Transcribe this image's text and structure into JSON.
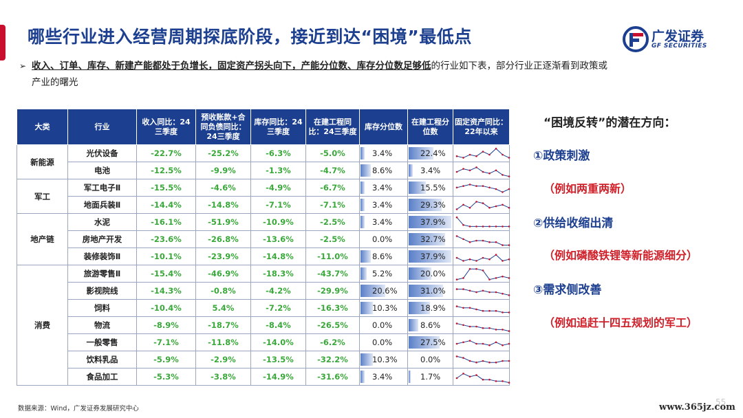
{
  "title": "哪些行业进入经营周期探底阶段，接近到达“困境”最低点",
  "logo": {
    "cn": "广发证券",
    "en": "GF SECURITIES"
  },
  "subtitle": {
    "bullet": "➢",
    "bold": "收入、订单、库存、新建产能都处于负增长，固定资产拐头向下，产能分位数、库存分位数足够低",
    "normal": "的行业如下表，部分行业正逐渐看到政策或",
    "line2": "产业的曙光"
  },
  "table": {
    "headers": [
      "大类",
      "行业",
      "收入同比：24三季度",
      "预收账款+合同负债同比：24三季度",
      "库存同比：24三季度",
      "在建工程同比：24三季度",
      "库存分位数",
      "在建工程分位数",
      "固定资产同比：22年以来"
    ],
    "groups": [
      {
        "name": "新能源",
        "rows": [
          {
            "industry": "光伏设备",
            "rev": "-22.7%",
            "adv": "-25.2%",
            "inv": "-6.3%",
            "cip": "-5.0%",
            "invp": "3.4%",
            "invp_v": 3.4,
            "cipp": "22.4%",
            "cipp_v": 22.4,
            "spark": [
              6,
              7,
              5,
              6,
              3,
              5,
              1,
              5,
              7
            ]
          },
          {
            "industry": "电池",
            "rev": "-12.5%",
            "adv": "-9.9%",
            "inv": "-1.3%",
            "cip": "-4.7%",
            "invp": "8.6%",
            "invp_v": 8.6,
            "cipp": "3.4%",
            "cipp_v": 3.4,
            "spark": [
              5,
              3,
              4,
              2,
              5,
              6,
              4,
              7,
              8
            ]
          }
        ]
      },
      {
        "name": "军工",
        "rows": [
          {
            "industry": "军工电子Ⅱ",
            "rev": "-15.5%",
            "adv": "-4.6%",
            "inv": "-4.9%",
            "cip": "-6.7%",
            "invp": "3.4%",
            "invp_v": 3.4,
            "cipp": "15.5%",
            "cipp_v": 15.5,
            "spark": [
              4,
              3,
              2,
              3,
              3,
              4,
              5,
              7,
              5
            ]
          },
          {
            "industry": "地面兵装Ⅱ",
            "rev": "-14.4%",
            "adv": "-14.8%",
            "inv": "-7.1%",
            "cip": "-7.1%",
            "invp": "3.4%",
            "invp_v": 3.4,
            "cipp": "29.3%",
            "cipp_v": 29.3,
            "spark": [
              7,
              4,
              6,
              2,
              3,
              6,
              5,
              4,
              6
            ]
          }
        ]
      },
      {
        "name": "地产链",
        "rows": [
          {
            "industry": "水泥",
            "rev": "-16.1%",
            "adv": "-51.9%",
            "inv": "-10.9%",
            "cip": "-2.5%",
            "invp": "3.4%",
            "invp_v": 3.4,
            "cipp": "37.9%",
            "cipp_v": 37.9,
            "spark": [
              1,
              6,
              7,
              7,
              7,
              7,
              7,
              7,
              7
            ]
          },
          {
            "industry": "房地产开发",
            "rev": "-23.6%",
            "adv": "-26.8%",
            "inv": "-13.6%",
            "cip": "-2.5%",
            "invp": "0.0%",
            "invp_v": 0,
            "cipp": "32.7%",
            "cipp_v": 32.7,
            "spark": [
              2,
              4,
              6,
              5,
              5,
              6,
              6,
              8,
              8
            ]
          },
          {
            "industry": "装修装饰Ⅱ",
            "rev": "-10.1%",
            "adv": "-23.9%",
            "inv": "-14.8%",
            "cip": "-11.0%",
            "invp": "8.6%",
            "invp_v": 8.6,
            "cipp": "37.9%",
            "cipp_v": 37.9,
            "spark": [
              5,
              7,
              6,
              7,
              5,
              6,
              3,
              7,
              6
            ]
          }
        ]
      },
      {
        "name": "消费",
        "rows": [
          {
            "industry": "旅游零售Ⅱ",
            "rev": "-15.4%",
            "adv": "-46.9%",
            "inv": "-18.3%",
            "cip": "-43.7%",
            "invp": "5.2%",
            "invp_v": 5.2,
            "cipp": "20.0%",
            "cipp_v": 20.0,
            "spark": [
              8,
              7,
              1,
              1,
              2,
              8,
              7,
              6,
              7
            ]
          },
          {
            "industry": "影视院线",
            "rev": "-14.3%",
            "adv": "-0.8%",
            "inv": "-4.2%",
            "cip": "-29.9%",
            "invp": "20.6%",
            "invp_v": 20.6,
            "cipp": "31.0%",
            "cipp_v": 31.0,
            "spark": [
              3,
              3,
              4,
              5,
              4,
              5,
              5,
              6,
              7
            ]
          },
          {
            "industry": "饲料",
            "rev": "-10.4%",
            "adv": "5.4%",
            "inv": "-7.2%",
            "cip": "-16.3%",
            "invp": "10.3%",
            "invp_v": 10.3,
            "cipp": "18.9%",
            "cipp_v": 18.9,
            "spark": [
              3,
              4,
              4,
              5,
              6,
              6,
              6,
              7,
              7
            ]
          },
          {
            "industry": "物流",
            "rev": "-8.9%",
            "adv": "-18.7%",
            "inv": "-8.4%",
            "cip": "-26.5%",
            "invp": "0.0%",
            "invp_v": 0,
            "cipp": "8.6%",
            "cipp_v": 8.6,
            "spark": [
              3,
              4,
              5,
              5,
              6,
              6,
              7,
              7,
              8
            ]
          },
          {
            "industry": "一般零售",
            "rev": "-7.1%",
            "adv": "-11.8%",
            "inv": "-14.0%",
            "cip": "-6.2%",
            "invp": "0.0%",
            "invp_v": 0,
            "cipp": "27.5%",
            "cipp_v": 27.5,
            "spark": [
              5,
              4,
              3,
              5,
              5,
              6,
              4,
              6,
              5
            ]
          },
          {
            "industry": "饮料乳品",
            "rev": "-5.9%",
            "adv": "-2.9%",
            "inv": "-13.5%",
            "cip": "-32.2%",
            "invp": "10.3%",
            "invp_v": 10.3,
            "cipp": "0.0%",
            "cipp_v": 0,
            "spark": [
              2,
              3,
              5,
              6,
              5,
              6,
              6,
              5,
              5
            ]
          },
          {
            "industry": "食品加工",
            "rev": "-5.3%",
            "adv": "-3.8%",
            "inv": "-14.9%",
            "cip": "-31.6%",
            "invp": "3.4%",
            "invp_v": 3.4,
            "cipp": "1.7%",
            "cipp_v": 1.7,
            "spark": [
              5,
              2,
              4,
              3,
              6,
              6,
              7,
              7,
              8
            ]
          }
        ]
      }
    ]
  },
  "right": {
    "title": "“困境反转”的潜在方向：",
    "items": [
      {
        "heading": "①政策刺激",
        "example": "（例如两重两新）"
      },
      {
        "heading": "②供给收缩出清",
        "example": "（例如磷酸铁锂等新能源细分）"
      },
      {
        "heading": "③需求侧改善",
        "example": "（例如追赶十四五规划的军工）"
      }
    ]
  },
  "source": "数据来源：Wind，广发证券发展研究中心",
  "page_number": "55",
  "watermark": "www.365jz.com",
  "colors": {
    "brand_blue": "#1c3f8f",
    "accent_red": "#c8102e",
    "positive_green": "#3aa83a"
  }
}
